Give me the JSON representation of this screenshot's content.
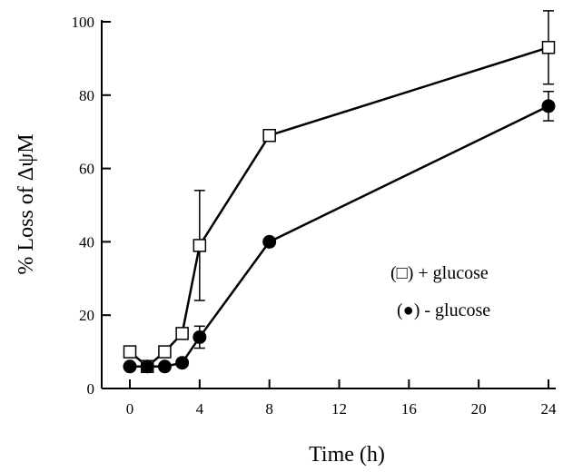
{
  "chart_data": {
    "type": "line",
    "xlabel": "Time (h)",
    "ylabel": "% Loss of ΔψM",
    "xlim": [
      0,
      24
    ],
    "ylim": [
      0,
      100
    ],
    "xticks": [
      0,
      4,
      8,
      12,
      16,
      20,
      24
    ],
    "yticks": [
      0,
      20,
      40,
      60,
      80,
      100
    ],
    "grid": false,
    "legend_position": "right",
    "series": [
      {
        "name": "+ glucose",
        "legend_label": "(□) + glucose",
        "marker": "open-square",
        "x": [
          0,
          1,
          2,
          3,
          4,
          8,
          24
        ],
        "y": [
          10,
          6,
          10,
          15,
          39,
          69,
          93
        ],
        "error": [
          null,
          null,
          null,
          null,
          15,
          null,
          10
        ]
      },
      {
        "name": "- glucose",
        "legend_label": "(●) - glucose",
        "marker": "filled-circle",
        "x": [
          0,
          1,
          2,
          3,
          4,
          8,
          24
        ],
        "y": [
          6,
          6,
          6,
          7,
          14,
          40,
          77
        ],
        "error": [
          null,
          null,
          null,
          null,
          3,
          null,
          4
        ]
      }
    ]
  }
}
